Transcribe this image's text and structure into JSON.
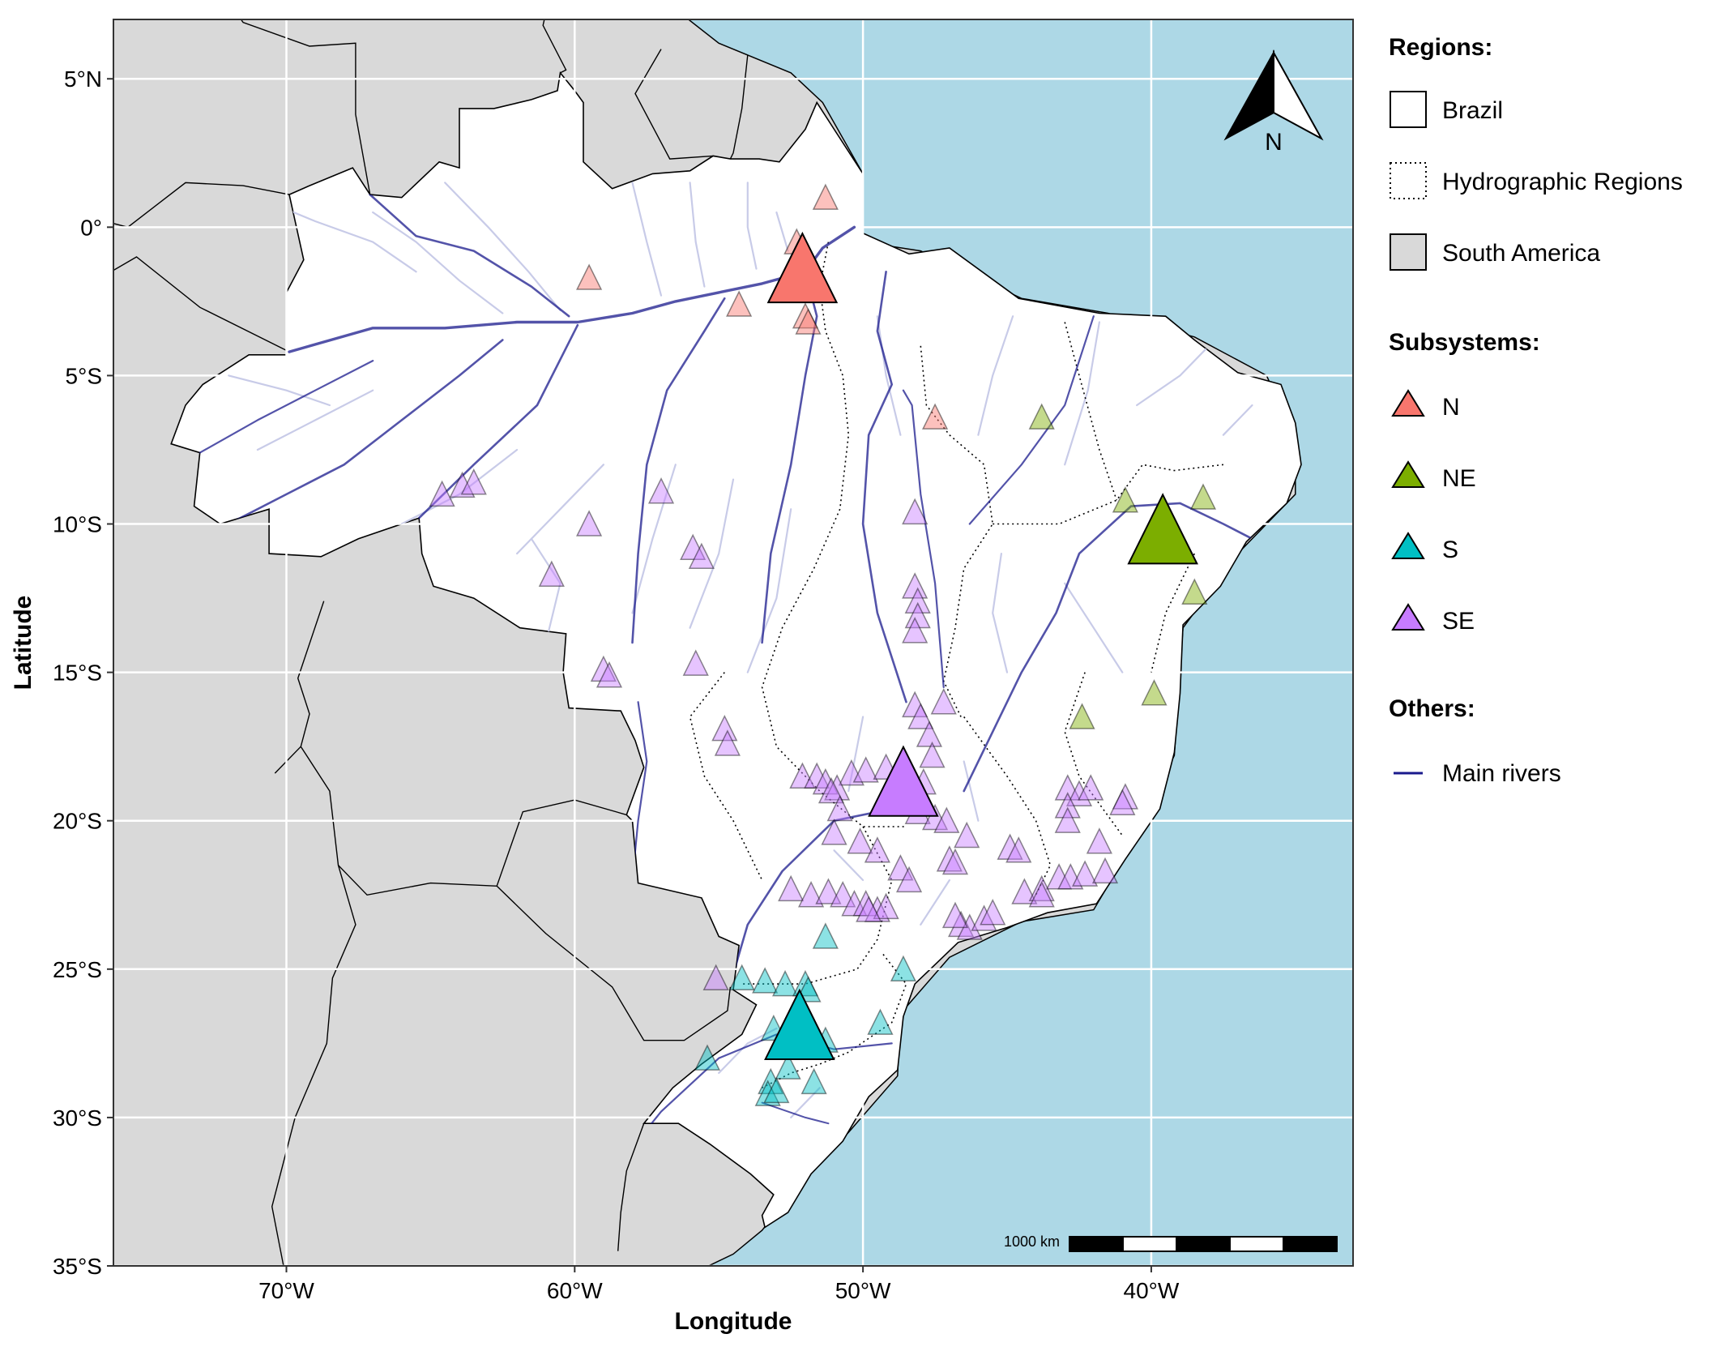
{
  "axes": {
    "xlabel": "Longitude",
    "ylabel": "Latitude",
    "xlim": [
      -76,
      -33
    ],
    "ylim": [
      -35,
      7
    ],
    "x_ticks": [
      {
        "value": -70,
        "label": "70°W"
      },
      {
        "value": -60,
        "label": "60°W"
      },
      {
        "value": -50,
        "label": "50°W"
      },
      {
        "value": -40,
        "label": "40°W"
      }
    ],
    "y_ticks": [
      {
        "value": 5,
        "label": "5°N"
      },
      {
        "value": 0,
        "label": "0°"
      },
      {
        "value": -5,
        "label": "5°S"
      },
      {
        "value": -10,
        "label": "10°S"
      },
      {
        "value": -15,
        "label": "15°S"
      },
      {
        "value": -20,
        "label": "20°S"
      },
      {
        "value": -25,
        "label": "25°S"
      },
      {
        "value": -30,
        "label": "30°S"
      },
      {
        "value": -35,
        "label": "35°S"
      }
    ]
  },
  "colors": {
    "ocean": "#add8e6",
    "land": "#d9d9d9",
    "brazil": "#ffffff",
    "river_main": "#1a1a8c",
    "river_minor": "#c8cbe8",
    "N": "#f8766d",
    "NE": "#7cae00",
    "S": "#00bfc4",
    "SE": "#c77cff"
  },
  "north_arrow_label": "N",
  "scale_bar_label": "1000 km",
  "legend": {
    "regions_title": "Regions:",
    "regions": [
      "Brazil",
      "Hydrographic Regions",
      "South America"
    ],
    "subsystems_title": "Subsystems:",
    "subsystems": [
      "N",
      "NE",
      "S",
      "SE"
    ],
    "others_title": "Others:",
    "others": [
      "Main rivers"
    ]
  },
  "chart_data": {
    "type": "scatter",
    "xlabel": "Longitude",
    "ylabel": "Latitude",
    "xlim": [
      -76,
      -33
    ],
    "ylim": [
      -35,
      7
    ],
    "grid": true,
    "legend_position": "right",
    "series": [
      {
        "name": "N",
        "centroid": [
          -52.1,
          -1.7
        ],
        "stations": [
          [
            -51.3,
            0.9
          ],
          [
            -52.3,
            -0.6
          ],
          [
            -59.5,
            -1.8
          ],
          [
            -54.3,
            -2.7
          ],
          [
            -52.0,
            -3.1
          ],
          [
            -51.9,
            -3.3
          ],
          [
            -47.5,
            -6.5
          ]
        ]
      },
      {
        "name": "NE",
        "centroid": [
          -39.6,
          -10.5
        ],
        "stations": [
          [
            -43.8,
            -6.5
          ],
          [
            -40.9,
            -9.3
          ],
          [
            -38.2,
            -9.2
          ],
          [
            -38.5,
            -12.4
          ],
          [
            -39.9,
            -15.8
          ],
          [
            -42.4,
            -16.6
          ]
        ]
      },
      {
        "name": "S",
        "centroid": [
          -52.2,
          -27.2
        ],
        "stations": [
          [
            -51.3,
            -24.0
          ],
          [
            -54.2,
            -25.4
          ],
          [
            -53.4,
            -25.5
          ],
          [
            -52.7,
            -25.6
          ],
          [
            -52.0,
            -25.6
          ],
          [
            -51.9,
            -25.8
          ],
          [
            -48.6,
            -25.1
          ],
          [
            -49.4,
            -26.9
          ],
          [
            -53.1,
            -27.1
          ],
          [
            -51.3,
            -27.5
          ],
          [
            -51.5,
            -27.6
          ],
          [
            -52.6,
            -28.4
          ],
          [
            -55.4,
            -28.1
          ],
          [
            -53.2,
            -28.9
          ],
          [
            -53.3,
            -29.3
          ],
          [
            -51.7,
            -28.9
          ],
          [
            -53.0,
            -29.2
          ]
        ]
      },
      {
        "name": "SE",
        "centroid": [
          -48.6,
          -19.0
        ],
        "stations": [
          [
            -64.6,
            -9.1
          ],
          [
            -63.9,
            -8.8
          ],
          [
            -63.5,
            -8.7
          ],
          [
            -59.5,
            -10.1
          ],
          [
            -57.0,
            -9.0
          ],
          [
            -55.9,
            -10.9
          ],
          [
            -55.6,
            -11.2
          ],
          [
            -60.8,
            -11.8
          ],
          [
            -48.2,
            -9.7
          ],
          [
            -48.2,
            -12.2
          ],
          [
            -48.1,
            -12.7
          ],
          [
            -48.1,
            -13.2
          ],
          [
            -48.2,
            -13.7
          ],
          [
            -59.0,
            -15.0
          ],
          [
            -58.8,
            -15.2
          ],
          [
            -55.8,
            -14.8
          ],
          [
            -54.8,
            -17.0
          ],
          [
            -54.7,
            -17.5
          ],
          [
            -48.2,
            -16.2
          ],
          [
            -47.2,
            -16.1
          ],
          [
            -48.0,
            -16.6
          ],
          [
            -47.7,
            -17.2
          ],
          [
            -47.6,
            -17.9
          ],
          [
            -50.4,
            -18.5
          ],
          [
            -49.9,
            -18.4
          ],
          [
            -49.2,
            -18.3
          ],
          [
            -47.9,
            -18.8
          ],
          [
            -52.1,
            -18.6
          ],
          [
            -51.6,
            -18.6
          ],
          [
            -51.3,
            -18.8
          ],
          [
            -50.9,
            -19.0
          ],
          [
            -51.1,
            -19.1
          ],
          [
            -50.8,
            -19.7
          ],
          [
            -48.1,
            -19.8
          ],
          [
            -47.5,
            -20.0
          ],
          [
            -47.1,
            -20.1
          ],
          [
            -46.4,
            -20.6
          ],
          [
            -51.0,
            -20.5
          ],
          [
            -50.1,
            -20.8
          ],
          [
            -49.5,
            -21.1
          ],
          [
            -48.7,
            -21.7
          ],
          [
            -48.4,
            -22.1
          ],
          [
            -47.0,
            -21.4
          ],
          [
            -46.8,
            -21.5
          ],
          [
            -44.9,
            -21.0
          ],
          [
            -44.6,
            -21.1
          ],
          [
            -42.9,
            -19.0
          ],
          [
            -42.5,
            -19.2
          ],
          [
            -42.1,
            -19.0
          ],
          [
            -40.9,
            -19.3
          ],
          [
            -41.0,
            -19.5
          ],
          [
            -42.9,
            -19.6
          ],
          [
            -42.9,
            -20.1
          ],
          [
            -41.8,
            -20.8
          ],
          [
            -52.5,
            -22.4
          ],
          [
            -51.8,
            -22.6
          ],
          [
            -51.2,
            -22.5
          ],
          [
            -50.7,
            -22.6
          ],
          [
            -50.3,
            -22.9
          ],
          [
            -49.9,
            -22.9
          ],
          [
            -49.5,
            -23.1
          ],
          [
            -49.2,
            -23.0
          ],
          [
            -49.8,
            -23.1
          ],
          [
            -44.4,
            -22.5
          ],
          [
            -43.8,
            -22.4
          ],
          [
            -43.2,
            -22.0
          ],
          [
            -42.8,
            -22.0
          ],
          [
            -42.3,
            -21.9
          ],
          [
            -41.6,
            -21.8
          ],
          [
            -43.8,
            -22.6
          ],
          [
            -46.6,
            -23.6
          ],
          [
            -46.3,
            -23.7
          ],
          [
            -45.8,
            -23.4
          ],
          [
            -45.5,
            -23.2
          ],
          [
            -55.1,
            -25.4
          ],
          [
            -46.8,
            -23.3
          ]
        ]
      }
    ]
  }
}
